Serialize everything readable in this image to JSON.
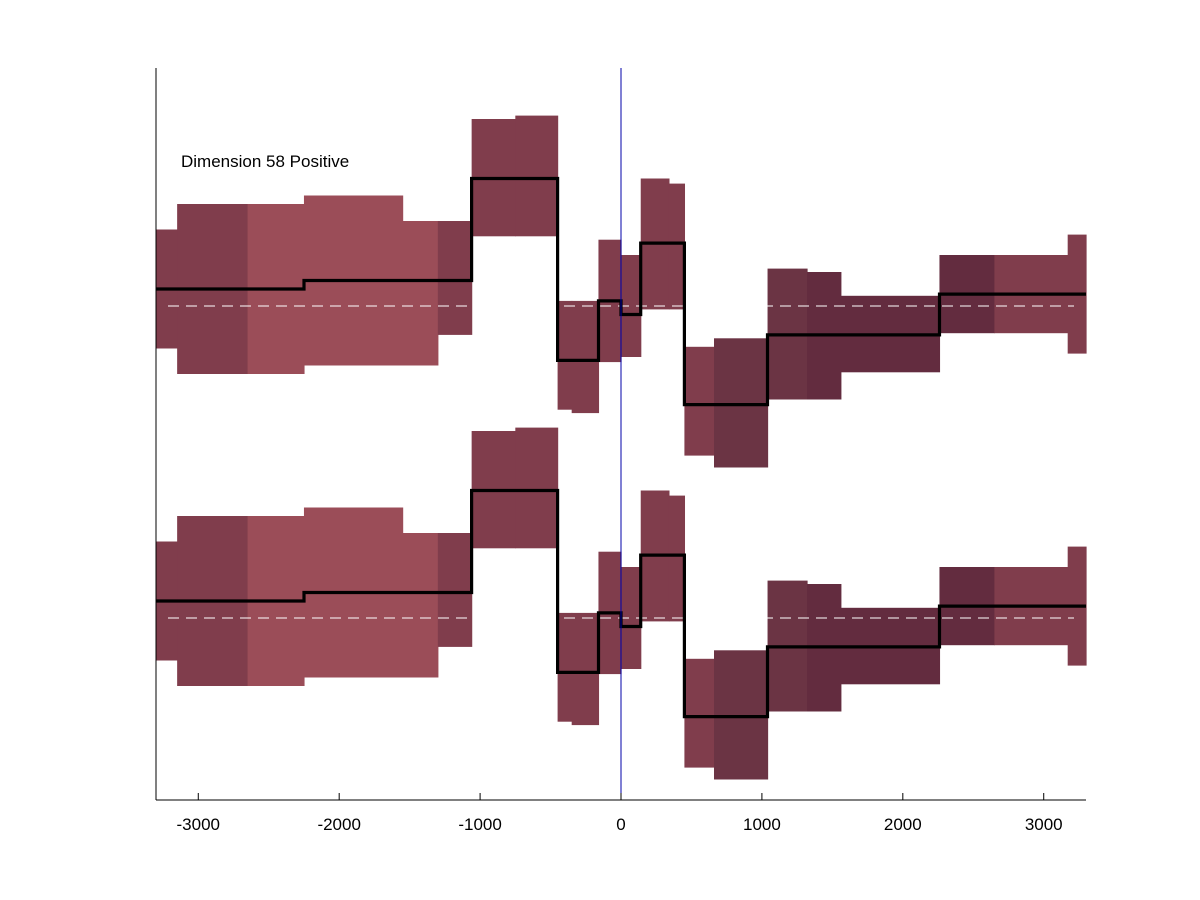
{
  "chart_data": {
    "type": "step",
    "annotation": "Dimension 58 Positive",
    "xlim": [
      -3300,
      3300
    ],
    "xticks": [
      -3000,
      -2000,
      -1000,
      0,
      1000,
      2000,
      3000
    ],
    "xtick_labels": [
      "-3000",
      "-2000",
      "-1000",
      "0",
      "1000",
      "2000",
      "3000"
    ],
    "vline_x": 0,
    "colors": {
      "mean_line": "#000000",
      "baseline": "#ffffff",
      "vline": "#0000aa",
      "axis": "#000000"
    },
    "panels": [
      {
        "baseline": 0,
        "bins": [
          {
            "x0": -3300,
            "x1": -3150,
            "mean": 0.1,
            "lo": -0.25,
            "hi": 0.45,
            "color": "#803d4c"
          },
          {
            "x0": -3150,
            "x1": -2650,
            "mean": 0.1,
            "lo": -0.4,
            "hi": 0.6,
            "color": "#803d4c"
          },
          {
            "x0": -2650,
            "x1": -2250,
            "mean": 0.1,
            "lo": -0.4,
            "hi": 0.6,
            "color": "#9b4d58"
          },
          {
            "x0": -2250,
            "x1": -1550,
            "mean": 0.15,
            "lo": -0.35,
            "hi": 0.65,
            "color": "#9b4d58"
          },
          {
            "x0": -1550,
            "x1": -1300,
            "mean": 0.15,
            "lo": -0.35,
            "hi": 0.5,
            "color": "#9b4d58"
          },
          {
            "x0": -1300,
            "x1": -1060,
            "mean": 0.15,
            "lo": -0.17,
            "hi": 0.5,
            "color": "#803d4c"
          },
          {
            "x0": -1060,
            "x1": -750,
            "mean": 0.75,
            "lo": 0.41,
            "hi": 1.1,
            "color": "#803d4c"
          },
          {
            "x0": -750,
            "x1": -450,
            "mean": 0.75,
            "lo": 0.41,
            "hi": 1.12,
            "color": "#803d4c"
          },
          {
            "x0": -450,
            "x1": -350,
            "mean": -0.32,
            "lo": -0.61,
            "hi": 0.03,
            "color": "#803d4c"
          },
          {
            "x0": -350,
            "x1": -160,
            "mean": -0.32,
            "lo": -0.63,
            "hi": 0.03,
            "color": "#803d4c"
          },
          {
            "x0": -160,
            "x1": 0,
            "mean": 0.03,
            "lo": -0.33,
            "hi": 0.39,
            "color": "#803d4c"
          },
          {
            "x0": 0,
            "x1": 140,
            "mean": -0.05,
            "lo": -0.3,
            "hi": 0.3,
            "color": "#803d4c"
          },
          {
            "x0": 140,
            "x1": 340,
            "mean": 0.37,
            "lo": -0.02,
            "hi": 0.75,
            "color": "#803d4c"
          },
          {
            "x0": 340,
            "x1": 450,
            "mean": 0.37,
            "lo": -0.02,
            "hi": 0.72,
            "color": "#803d4c"
          },
          {
            "x0": 450,
            "x1": 660,
            "mean": -0.58,
            "lo": -0.88,
            "hi": -0.24,
            "color": "#803d4c"
          },
          {
            "x0": 660,
            "x1": 1040,
            "mean": -0.58,
            "lo": -0.95,
            "hi": -0.19,
            "color": "#6b3444"
          },
          {
            "x0": 1040,
            "x1": 1320,
            "mean": -0.17,
            "lo": -0.55,
            "hi": 0.22,
            "color": "#6b3444"
          },
          {
            "x0": 1320,
            "x1": 1560,
            "mean": -0.17,
            "lo": -0.55,
            "hi": 0.2,
            "color": "#632c3f"
          },
          {
            "x0": 1560,
            "x1": 2260,
            "mean": -0.17,
            "lo": -0.39,
            "hi": 0.06,
            "color": "#632c3f"
          },
          {
            "x0": 2260,
            "x1": 2650,
            "mean": 0.07,
            "lo": -0.16,
            "hi": 0.3,
            "color": "#632c3f"
          },
          {
            "x0": 2650,
            "x1": 3170,
            "mean": 0.07,
            "lo": -0.16,
            "hi": 0.3,
            "color": "#803d4c"
          },
          {
            "x0": 3170,
            "x1": 3300,
            "mean": 0.07,
            "lo": -0.28,
            "hi": 0.42,
            "color": "#803d4c"
          }
        ]
      },
      {
        "baseline": 0,
        "bins": [
          {
            "x0": -3300,
            "x1": -3150,
            "mean": 0.1,
            "lo": -0.25,
            "hi": 0.45,
            "color": "#803d4c"
          },
          {
            "x0": -3150,
            "x1": -2650,
            "mean": 0.1,
            "lo": -0.4,
            "hi": 0.6,
            "color": "#803d4c"
          },
          {
            "x0": -2650,
            "x1": -2250,
            "mean": 0.1,
            "lo": -0.4,
            "hi": 0.6,
            "color": "#9b4d58"
          },
          {
            "x0": -2250,
            "x1": -1550,
            "mean": 0.15,
            "lo": -0.35,
            "hi": 0.65,
            "color": "#9b4d58"
          },
          {
            "x0": -1550,
            "x1": -1300,
            "mean": 0.15,
            "lo": -0.35,
            "hi": 0.5,
            "color": "#9b4d58"
          },
          {
            "x0": -1300,
            "x1": -1060,
            "mean": 0.15,
            "lo": -0.17,
            "hi": 0.5,
            "color": "#803d4c"
          },
          {
            "x0": -1060,
            "x1": -750,
            "mean": 0.75,
            "lo": 0.41,
            "hi": 1.1,
            "color": "#803d4c"
          },
          {
            "x0": -750,
            "x1": -450,
            "mean": 0.75,
            "lo": 0.41,
            "hi": 1.12,
            "color": "#803d4c"
          },
          {
            "x0": -450,
            "x1": -350,
            "mean": -0.32,
            "lo": -0.61,
            "hi": 0.03,
            "color": "#803d4c"
          },
          {
            "x0": -350,
            "x1": -160,
            "mean": -0.32,
            "lo": -0.63,
            "hi": 0.03,
            "color": "#803d4c"
          },
          {
            "x0": -160,
            "x1": 0,
            "mean": 0.03,
            "lo": -0.33,
            "hi": 0.39,
            "color": "#803d4c"
          },
          {
            "x0": 0,
            "x1": 140,
            "mean": -0.05,
            "lo": -0.3,
            "hi": 0.3,
            "color": "#803d4c"
          },
          {
            "x0": 140,
            "x1": 340,
            "mean": 0.37,
            "lo": -0.02,
            "hi": 0.75,
            "color": "#803d4c"
          },
          {
            "x0": 340,
            "x1": 450,
            "mean": 0.37,
            "lo": -0.02,
            "hi": 0.72,
            "color": "#803d4c"
          },
          {
            "x0": 450,
            "x1": 660,
            "mean": -0.58,
            "lo": -0.88,
            "hi": -0.24,
            "color": "#803d4c"
          },
          {
            "x0": 660,
            "x1": 1040,
            "mean": -0.58,
            "lo": -0.95,
            "hi": -0.19,
            "color": "#6b3444"
          },
          {
            "x0": 1040,
            "x1": 1320,
            "mean": -0.17,
            "lo": -0.55,
            "hi": 0.22,
            "color": "#6b3444"
          },
          {
            "x0": 1320,
            "x1": 1560,
            "mean": -0.17,
            "lo": -0.55,
            "hi": 0.2,
            "color": "#632c3f"
          },
          {
            "x0": 1560,
            "x1": 2260,
            "mean": -0.17,
            "lo": -0.39,
            "hi": 0.06,
            "color": "#632c3f"
          },
          {
            "x0": 2260,
            "x1": 2650,
            "mean": 0.07,
            "lo": -0.16,
            "hi": 0.3,
            "color": "#632c3f"
          },
          {
            "x0": 2650,
            "x1": 3170,
            "mean": 0.07,
            "lo": -0.16,
            "hi": 0.3,
            "color": "#803d4c"
          },
          {
            "x0": 3170,
            "x1": 3300,
            "mean": 0.07,
            "lo": -0.28,
            "hi": 0.42,
            "color": "#803d4c"
          }
        ]
      }
    ]
  }
}
